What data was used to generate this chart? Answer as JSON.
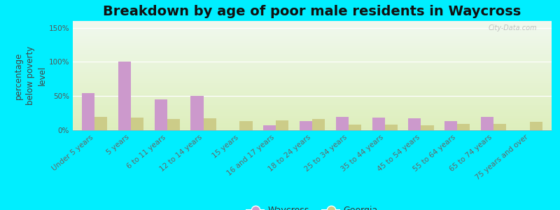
{
  "title": "Breakdown by age of poor male residents in Waycross",
  "ylabel": "percentage\nbelow poverty\nlevel",
  "categories": [
    "Under 5 years",
    "5 years",
    "6 to 11 years",
    "12 to 14 years",
    "15 years",
    "16 and 17 years",
    "18 to 24 years",
    "25 to 34 years",
    "35 to 44 years",
    "45 to 54 years",
    "55 to 64 years",
    "65 to 74 years",
    "75 years and over"
  ],
  "waycross": [
    54,
    100,
    45,
    50,
    0,
    7,
    13,
    20,
    18,
    17,
    13,
    20,
    0
  ],
  "georgia": [
    20,
    18,
    16,
    17,
    13,
    14,
    16,
    8,
    8,
    7,
    9,
    9,
    12
  ],
  "waycross_color": "#cc99cc",
  "georgia_color": "#cccc88",
  "bg_outer": "#00eeff",
  "grad_top": "#f0f8ee",
  "grad_bottom": "#ddeebb",
  "yticks": [
    0,
    50,
    100,
    150
  ],
  "ytick_labels": [
    "0%",
    "50%",
    "100%",
    "150%"
  ],
  "ylim": [
    0,
    160
  ],
  "bar_width": 0.35,
  "title_fontsize": 14,
  "axis_label_fontsize": 8.5,
  "tick_fontsize": 7.5,
  "legend_fontsize": 9,
  "watermark": "City-Data.com"
}
